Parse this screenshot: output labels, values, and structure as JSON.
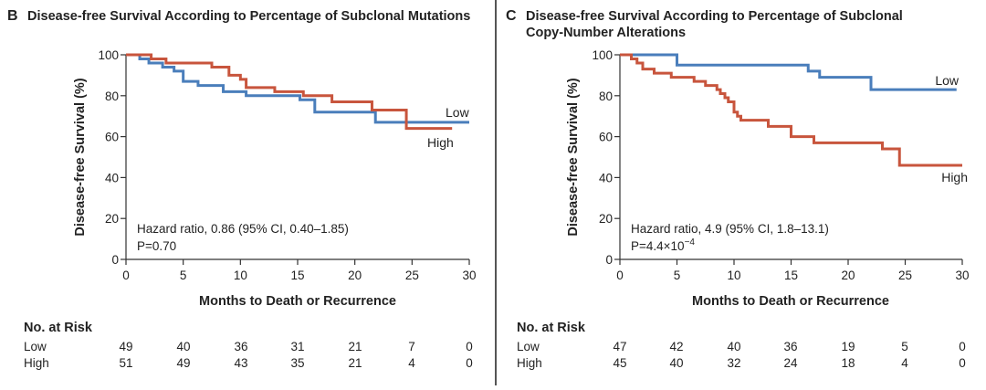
{
  "panels": [
    {
      "letter": "B",
      "title_lines": [
        "Disease-free Survival According to Percentage of Subclonal Mutations"
      ],
      "chart_data": {
        "type": "line",
        "title": "Disease-free Survival According to Percentage of Subclonal Mutations",
        "xlabel": "Months to Death or Recurrence",
        "ylabel": "Disease-free Survival  (%)",
        "xlim": [
          0,
          30
        ],
        "ylim": [
          0,
          100
        ],
        "xticks": [
          0,
          5,
          10,
          15,
          20,
          25,
          30
        ],
        "yticks": [
          0,
          20,
          40,
          60,
          80,
          100
        ],
        "grid": false,
        "series": [
          {
            "name": "Low",
            "color": "#4a7ebb",
            "steps": [
              [
                0,
                100
              ],
              [
                1.2,
                98
              ],
              [
                2,
                96
              ],
              [
                3.2,
                94
              ],
              [
                4.2,
                92
              ],
              [
                5,
                87
              ],
              [
                6.3,
                85
              ],
              [
                8.5,
                82
              ],
              [
                10.5,
                80
              ],
              [
                15.2,
                78
              ],
              [
                16.5,
                72
              ],
              [
                21.8,
                67
              ],
              [
                30,
                67
              ]
            ]
          },
          {
            "name": "High",
            "color": "#c8553d",
            "steps": [
              [
                0,
                100
              ],
              [
                2.2,
                98
              ],
              [
                3.5,
                96
              ],
              [
                7.5,
                94
              ],
              [
                9,
                90
              ],
              [
                10,
                88
              ],
              [
                10.5,
                84
              ],
              [
                13,
                82
              ],
              [
                15.5,
                80
              ],
              [
                18,
                77
              ],
              [
                21.5,
                73
              ],
              [
                24.5,
                64
              ],
              [
                28.5,
                64
              ]
            ]
          }
        ],
        "annotations": [
          "Hazard ratio, 0.86 (95% CI, 0.40–1.85)",
          "P=0.70"
        ]
      },
      "risk_table": {
        "header": "No. at Risk",
        "rows": [
          {
            "label": "Low",
            "values": [
              "49",
              "40",
              "36",
              "31",
              "21",
              "7",
              "0"
            ]
          },
          {
            "label": "High",
            "values": [
              "51",
              "49",
              "43",
              "35",
              "21",
              "4",
              "0"
            ]
          }
        ]
      }
    },
    {
      "letter": "C",
      "title_lines": [
        "Disease-free Survival According to Percentage of Subclonal",
        "Copy-Number Alterations"
      ],
      "chart_data": {
        "type": "line",
        "title": "Disease-free Survival According to Percentage of Subclonal Copy-Number Alterations",
        "xlabel": "Months to Death or Recurrence",
        "ylabel": "Disease-free Survival  (%)",
        "xlim": [
          0,
          30
        ],
        "ylim": [
          0,
          100
        ],
        "xticks": [
          0,
          5,
          10,
          15,
          20,
          25,
          30
        ],
        "yticks": [
          0,
          20,
          40,
          60,
          80,
          100
        ],
        "grid": false,
        "series": [
          {
            "name": "Low",
            "color": "#4a7ebb",
            "steps": [
              [
                0,
                100
              ],
              [
                5,
                95
              ],
              [
                16.5,
                92
              ],
              [
                17.5,
                89
              ],
              [
                22,
                83
              ],
              [
                29.5,
                83
              ]
            ]
          },
          {
            "name": "High",
            "color": "#c8553d",
            "steps": [
              [
                0,
                100
              ],
              [
                1,
                98
              ],
              [
                1.5,
                96
              ],
              [
                2,
                93
              ],
              [
                3,
                91
              ],
              [
                4.5,
                89
              ],
              [
                6.5,
                87
              ],
              [
                7.5,
                85
              ],
              [
                8.5,
                83
              ],
              [
                8.8,
                81
              ],
              [
                9.2,
                79
              ],
              [
                9.5,
                77
              ],
              [
                10,
                72
              ],
              [
                10.3,
                70
              ],
              [
                10.6,
                68
              ],
              [
                13,
                65
              ],
              [
                15,
                60
              ],
              [
                17,
                57
              ],
              [
                23,
                54
              ],
              [
                24.5,
                46
              ],
              [
                30,
                46
              ]
            ]
          }
        ],
        "annotations": [
          "Hazard ratio, 4.9 (95% CI, 1.8–13.1)",
          "P=4.4×10",
          "−4"
        ]
      },
      "risk_table": {
        "header": "No. at Risk",
        "rows": [
          {
            "label": "Low",
            "values": [
              "47",
              "42",
              "40",
              "36",
              "19",
              "5",
              "0"
            ]
          },
          {
            "label": "High",
            "values": [
              "45",
              "40",
              "32",
              "24",
              "18",
              "4",
              "0"
            ]
          }
        ]
      }
    }
  ]
}
